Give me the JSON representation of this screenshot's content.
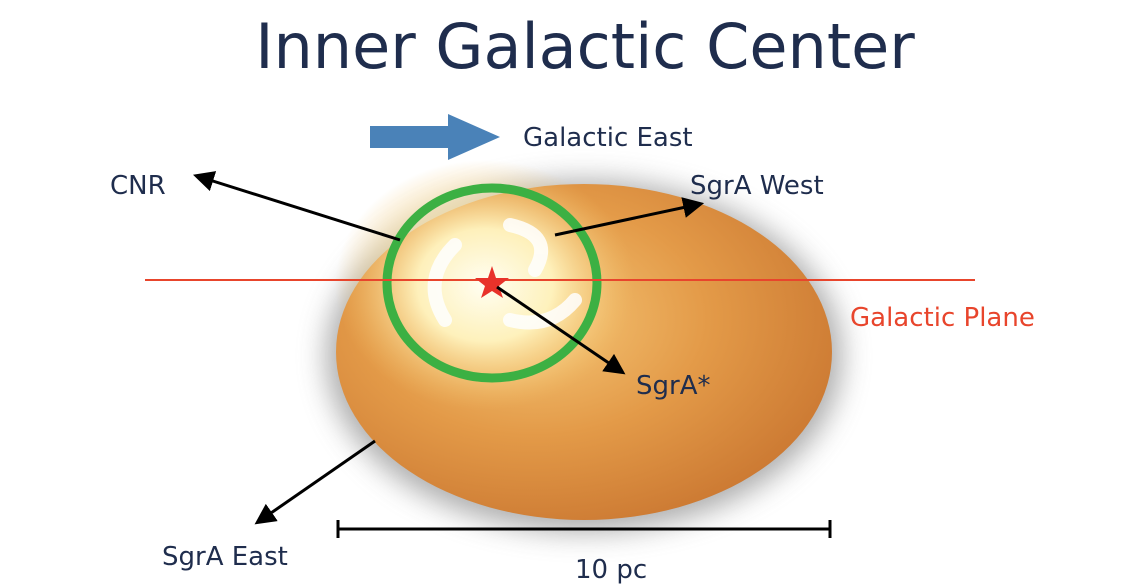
{
  "title": "Inner Galactic Center",
  "labels": {
    "galactic_east": "Galactic East",
    "cnr": "CNR",
    "sgra_west": "SgrA West",
    "galactic_plane": "Galactic Plane",
    "sgra_star": "SgrA*",
    "sgra_east": "SgrA East",
    "scale": "10 pc"
  }
}
